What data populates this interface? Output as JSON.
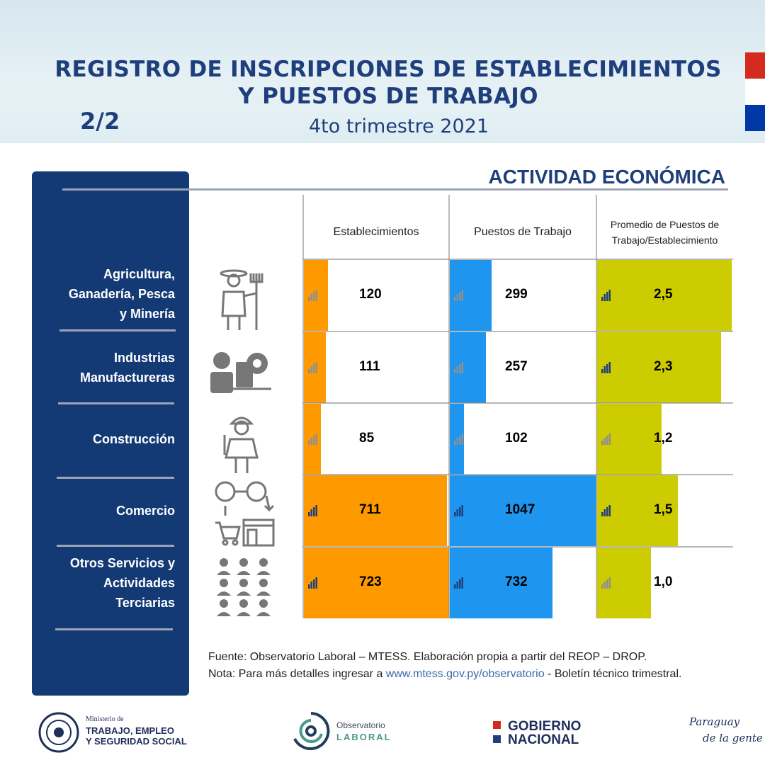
{
  "header": {
    "title_line1": "REGISTRO DE INSCRIPCIONES DE ESTABLECIMIENTOS",
    "title_line2": "Y PUESTOS DE TRABAJO",
    "subtitle": "4to trimestre 2021",
    "page_indicator": "2/2"
  },
  "section_title": "ACTIVIDAD ECONÓMICA",
  "colors": {
    "navy": "#143a76",
    "title_blue": "#1f3f7c",
    "orange": "#ff9900",
    "blue": "#1e96f0",
    "olive": "#cccc00"
  },
  "chart_data": {
    "type": "table",
    "columns": [
      "Establecimientos",
      "Puestos de Trabajo",
      "Promedio de Puestos de Trabajo/Establecimiento"
    ],
    "column_header_lines": [
      [
        "Establecimientos"
      ],
      [
        "Puestos de Trabajo"
      ],
      [
        "Promedio de Puestos de",
        "Trabajo/Establecimiento"
      ]
    ],
    "rows": [
      {
        "sector_lines": [
          "Agricultura,",
          "Ganadería, Pesca",
          "y Minería"
        ],
        "icon": "farmer-icon",
        "establecimientos": 120,
        "puestos": 299,
        "promedio": 2.5,
        "promedio_label": "2,5"
      },
      {
        "sector_lines": [
          "Industrias",
          "Manufactureras"
        ],
        "icon": "industry-worker-icon",
        "establecimientos": 111,
        "puestos": 257,
        "promedio": 2.3,
        "promedio_label": "2,3"
      },
      {
        "sector_lines": [
          "Construcción"
        ],
        "icon": "construction-worker-icon",
        "establecimientos": 85,
        "puestos": 102,
        "promedio": 1.2,
        "promedio_label": "1,2"
      },
      {
        "sector_lines": [
          "Comercio"
        ],
        "icon": "commerce-icon",
        "establecimientos": 711,
        "puestos": 1047,
        "promedio": 1.5,
        "promedio_label": "1,5"
      },
      {
        "sector_lines": [
          "Otros Servicios y",
          "Actividades",
          "Terciarias"
        ],
        "icon": "people-group-icon",
        "establecimientos": 723,
        "puestos": 732,
        "promedio": 1.0,
        "promedio_label": "1,0"
      }
    ]
  },
  "footer": {
    "source": "Fuente: Observatorio Laboral – MTESS. Elaboración propia a partir del REOP – DROP.",
    "note_prefix": "Nota: Para más detalles ingresar a ",
    "note_link": "www.mtess.gov.py/observatorio",
    "note_suffix": " - Boletín técnico trimestral."
  },
  "logos": {
    "ministry_small": "Ministerio de",
    "ministry_line1": "TRABAJO, EMPLEO",
    "ministry_line2": "Y SEGURIDAD SOCIAL",
    "observatorio_line1": "Observatorio",
    "observatorio_line2": "LABORAL",
    "gobierno_line1": "GOBIERNO",
    "gobierno_line2": "NACIONAL",
    "paraguay_line1": "Paraguay",
    "paraguay_line2": "de la gente"
  }
}
